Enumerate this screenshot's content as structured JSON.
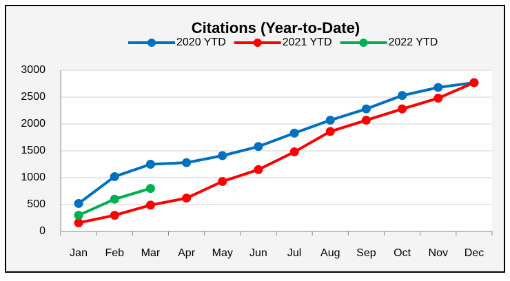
{
  "chart_data": {
    "type": "line",
    "title": "Citations (Year-to-Date)",
    "categories": [
      "Jan",
      "Feb",
      "Mar",
      "Apr",
      "May",
      "Jun",
      "Jul",
      "Aug",
      "Sep",
      "Oct",
      "Nov",
      "Dec"
    ],
    "series": [
      {
        "name": "2020 YTD",
        "color": "#0070c0",
        "values": [
          520,
          1020,
          1250,
          1280,
          1410,
          1580,
          1830,
          2070,
          2280,
          2530,
          2680,
          2770
        ]
      },
      {
        "name": "2021 YTD",
        "color": "#ff0000",
        "values": [
          160,
          300,
          490,
          620,
          930,
          1150,
          1480,
          1860,
          2070,
          2280,
          2480,
          2770
        ]
      },
      {
        "name": "2022 YTD",
        "color": "#00b050",
        "values": [
          300,
          600,
          800,
          null,
          null,
          null,
          null,
          null,
          null,
          null,
          null,
          null
        ]
      }
    ],
    "ylim": [
      0,
      3000
    ],
    "yticks": [
      0,
      500,
      1000,
      1500,
      2000,
      2500,
      3000
    ],
    "grid": true,
    "legend": "top"
  }
}
